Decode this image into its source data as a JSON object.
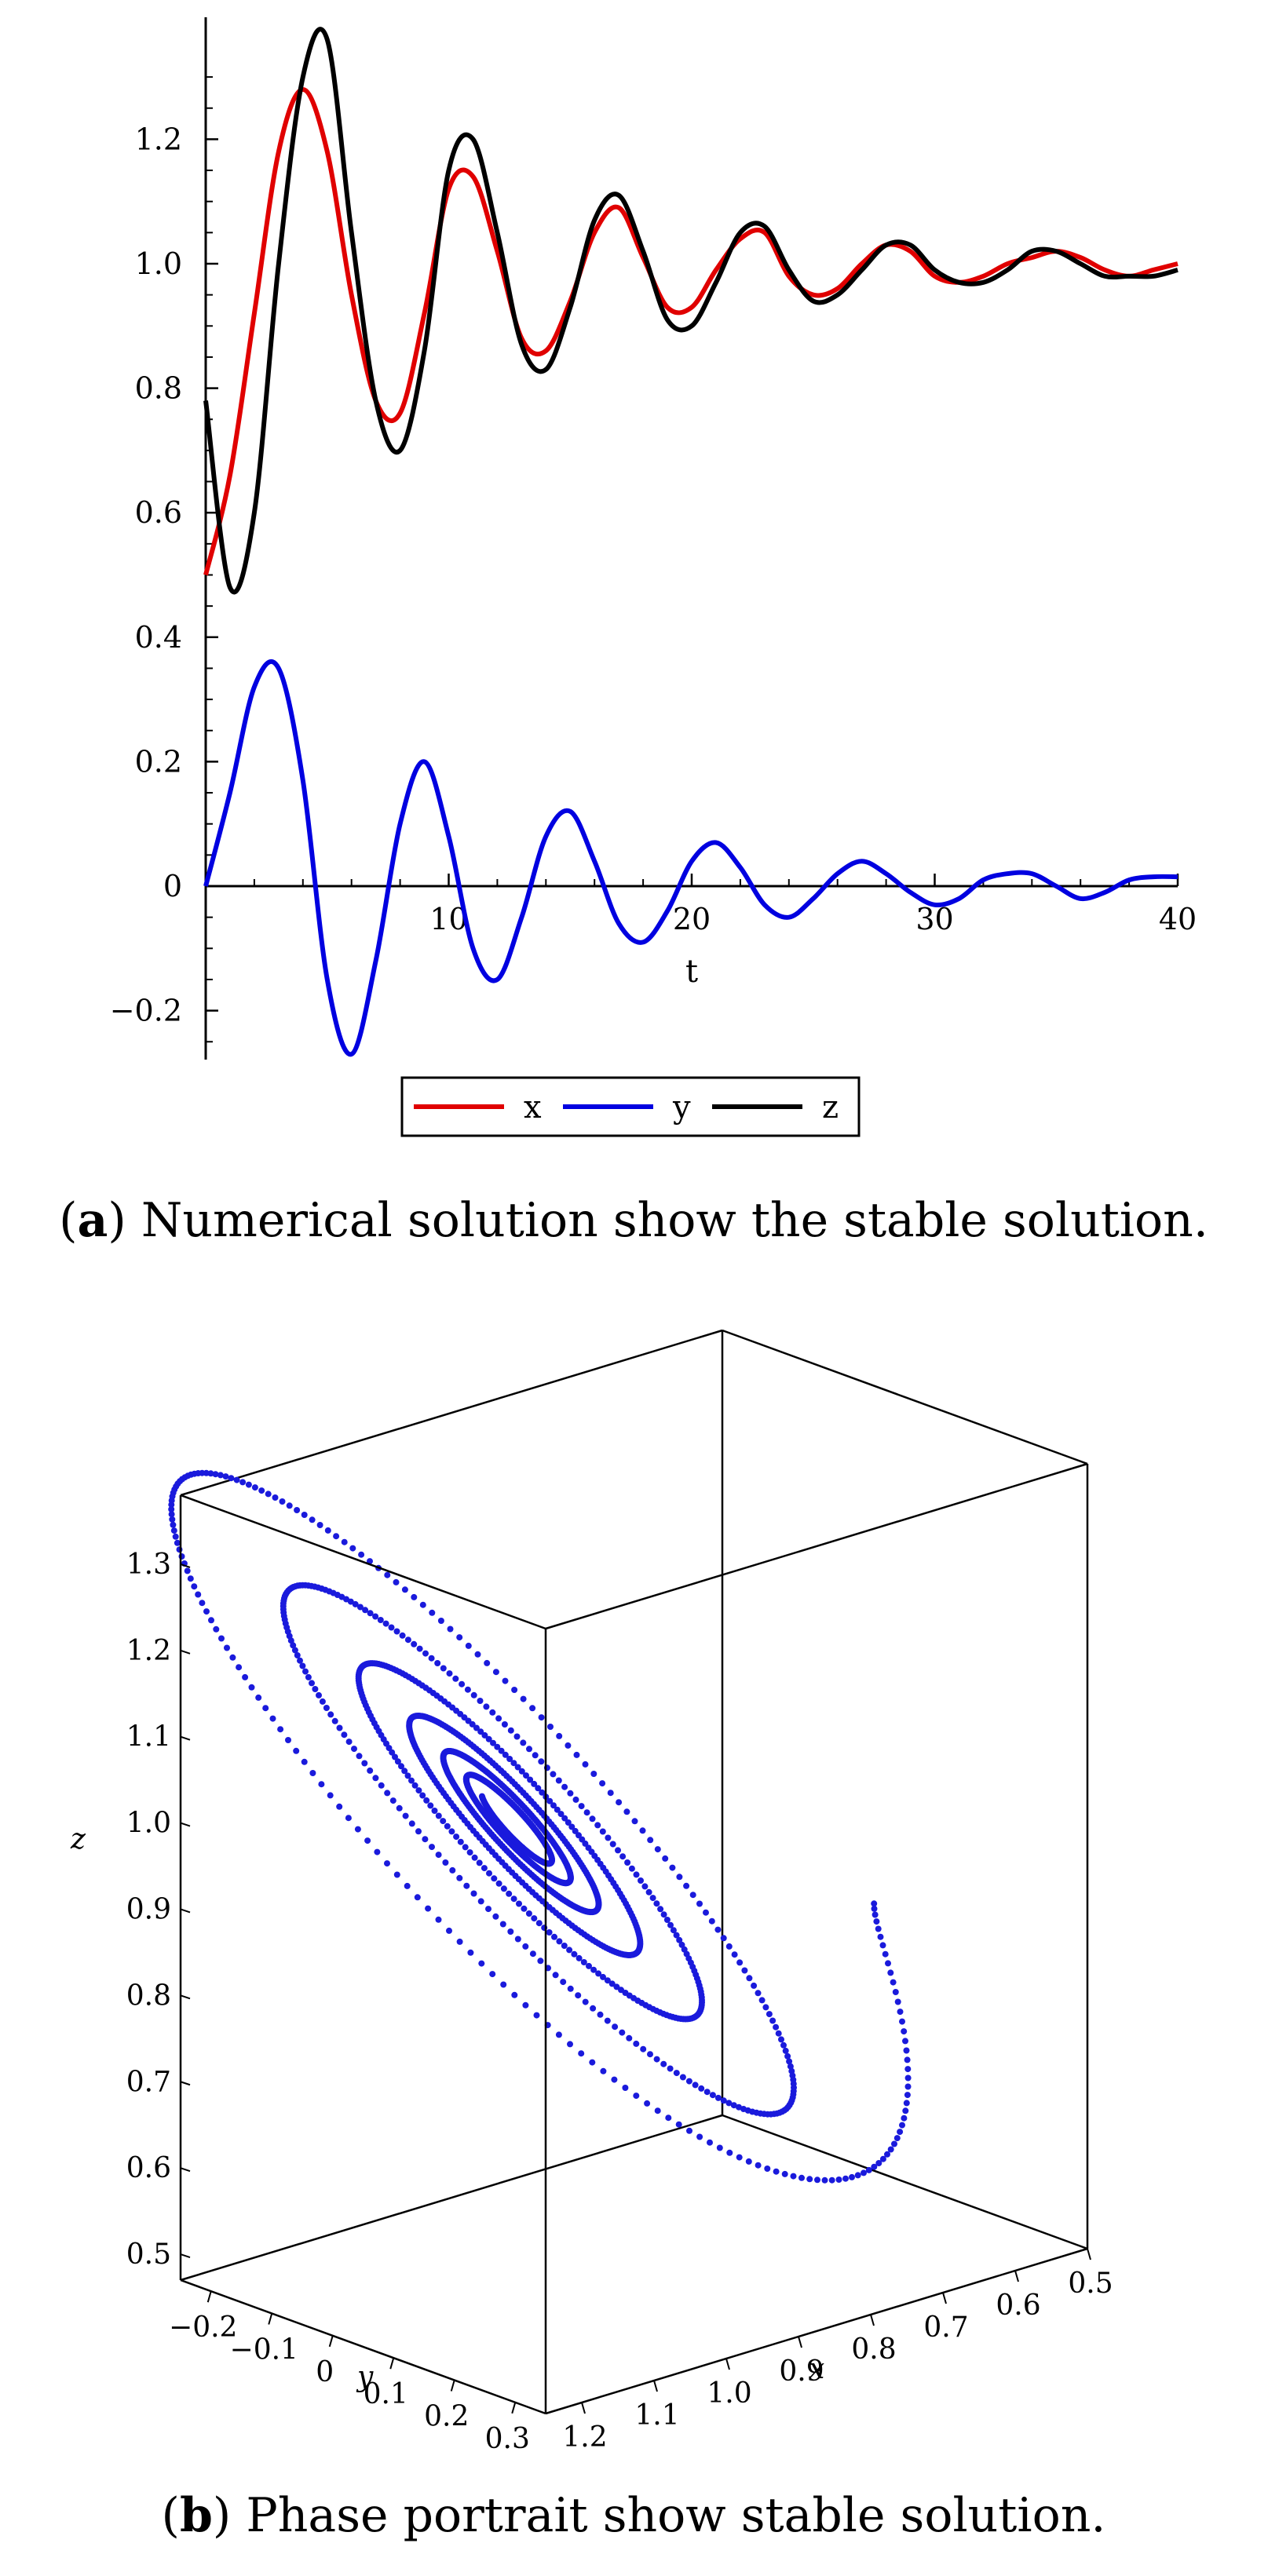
{
  "chart_data": [
    {
      "type": "line",
      "xlabel": "t",
      "ylabel": "",
      "xlim": [
        0,
        40
      ],
      "ylim": [
        -0.27,
        1.38
      ],
      "xticks": [
        "10",
        "20",
        "30",
        "40"
      ],
      "yticks": [
        "−0.2",
        "0",
        "0.2",
        "0.4",
        "0.6",
        "0.8",
        "1.0",
        "1.2"
      ],
      "legend_position": "bottom",
      "series": [
        {
          "name": "x",
          "color": "#e00000",
          "x": [
            0,
            1,
            2,
            3,
            4,
            5,
            6,
            7,
            8,
            9,
            10,
            11,
            12,
            13,
            14,
            15,
            16,
            17,
            18,
            19,
            20,
            21,
            22,
            23,
            24,
            25,
            26,
            27,
            28,
            29,
            30,
            31,
            32,
            33,
            34,
            35,
            36,
            37,
            38,
            39,
            40
          ],
          "values": [
            0.5,
            0.66,
            0.92,
            1.18,
            1.28,
            1.18,
            0.95,
            0.78,
            0.76,
            0.92,
            1.12,
            1.14,
            1.02,
            0.88,
            0.86,
            0.94,
            1.05,
            1.09,
            1.01,
            0.93,
            0.93,
            0.99,
            1.04,
            1.05,
            0.98,
            0.95,
            0.96,
            1.0,
            1.03,
            1.02,
            0.98,
            0.97,
            0.98,
            1.0,
            1.01,
            1.02,
            1.01,
            0.99,
            0.98,
            0.99,
            1.0
          ]
        },
        {
          "name": "y",
          "color": "#0000e0",
          "x": [
            0,
            1,
            2,
            3,
            4,
            5,
            6,
            7,
            8,
            9,
            10,
            11,
            12,
            13,
            14,
            15,
            16,
            17,
            18,
            19,
            20,
            21,
            22,
            23,
            24,
            25,
            26,
            27,
            28,
            29,
            30,
            31,
            32,
            33,
            34,
            35,
            36,
            37,
            38,
            39,
            40
          ],
          "values": [
            0,
            0.15,
            0.32,
            0.35,
            0.17,
            -0.15,
            -0.27,
            -0.12,
            0.1,
            0.2,
            0.08,
            -0.1,
            -0.15,
            -0.05,
            0.08,
            0.12,
            0.04,
            -0.06,
            -0.09,
            -0.04,
            0.04,
            0.07,
            0.03,
            -0.03,
            -0.05,
            -0.02,
            0.02,
            0.04,
            0.02,
            -0.01,
            -0.03,
            -0.02,
            0.01,
            0.02,
            0.02,
            0.0,
            -0.02,
            -0.01,
            0.01,
            0.015,
            0.015
          ]
        },
        {
          "name": "z",
          "color": "#000000",
          "x": [
            0,
            1,
            2,
            3,
            4,
            5,
            6,
            7,
            8,
            9,
            10,
            11,
            12,
            13,
            14,
            15,
            16,
            17,
            18,
            19,
            20,
            21,
            22,
            23,
            24,
            25,
            26,
            27,
            28,
            29,
            30,
            31,
            32,
            33,
            34,
            35,
            36,
            37,
            38,
            39,
            40
          ],
          "values": [
            0.78,
            0.48,
            0.6,
            1.0,
            1.3,
            1.36,
            1.05,
            0.78,
            0.7,
            0.86,
            1.15,
            1.2,
            1.05,
            0.87,
            0.83,
            0.93,
            1.07,
            1.11,
            1.02,
            0.91,
            0.9,
            0.97,
            1.05,
            1.06,
            0.99,
            0.94,
            0.95,
            0.99,
            1.03,
            1.03,
            0.99,
            0.97,
            0.97,
            0.99,
            1.02,
            1.02,
            1.0,
            0.98,
            0.98,
            0.98,
            0.99
          ]
        }
      ]
    },
    {
      "type": "scatter",
      "projection": "3d",
      "xlabel": "x",
      "ylabel": "y",
      "zlabel": "z",
      "color": "#1a1adc",
      "xlim": [
        0.5,
        1.25
      ],
      "ylim": [
        -0.25,
        0.35
      ],
      "zlim": [
        0.47,
        1.38
      ],
      "xticks": [
        "1.2",
        "1.1",
        "1.0",
        "0.9",
        "0.8",
        "0.7",
        "0.6",
        "0.5"
      ],
      "yticks": [
        "−0.2",
        "−0.1",
        "0",
        "0.1",
        "0.2",
        "0.3"
      ],
      "zticks": [
        "0.5",
        "0.6",
        "0.7",
        "0.8",
        "0.9",
        "1.0",
        "1.1",
        "1.2",
        "1.3"
      ],
      "trajectory": {
        "t_range": [
          0,
          40
        ],
        "x0": 0.5,
        "y0": 0.0,
        "z0": 0.78,
        "equilibrium": [
          1.0,
          0.0,
          1.0
        ]
      }
    }
  ],
  "captions": {
    "a_label": "a",
    "a_text": "Numerical solution show the stable solution.",
    "b_label": "b",
    "b_text": "Phase portrait show stable solution."
  }
}
